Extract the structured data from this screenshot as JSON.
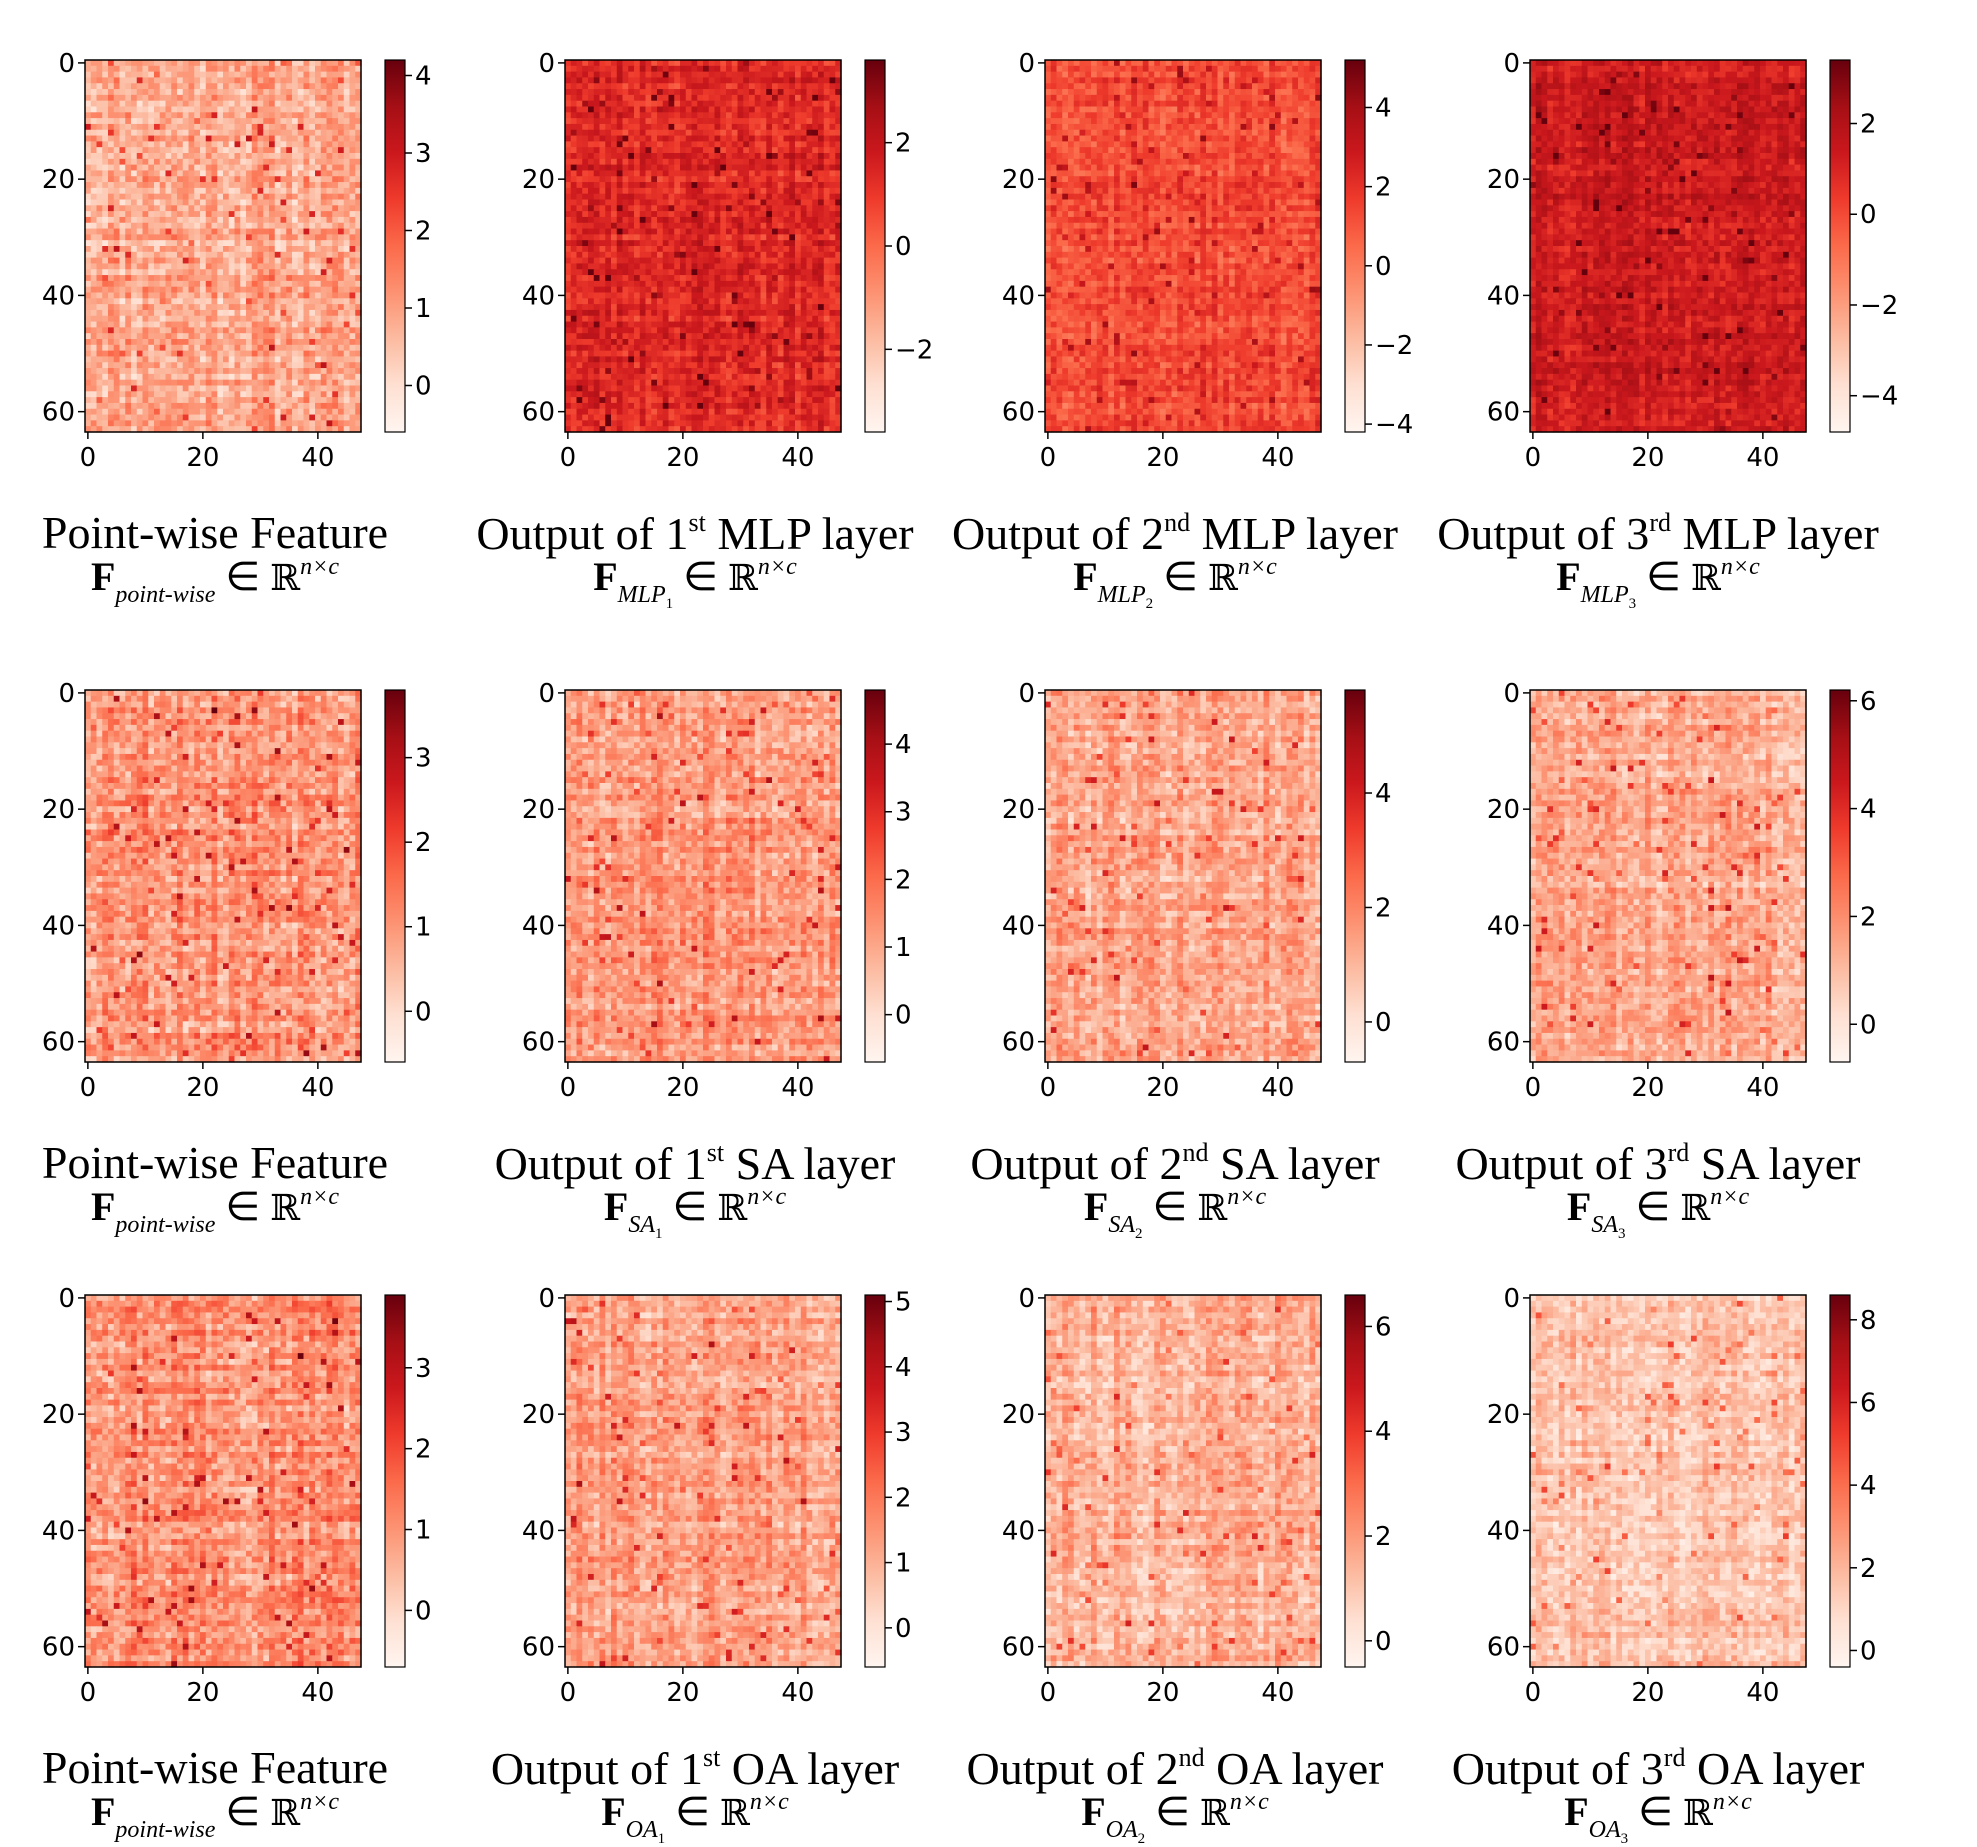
{
  "chart_data": [
    {
      "type": "heatmap",
      "row": 0,
      "col": 0,
      "title_text": "Point-wise Feature",
      "title_ordinal": "",
      "formula_symbol": "F",
      "formula_subscript": "point-wise",
      "formula_subscript_index": "",
      "formula_set": "ℝ",
      "formula_superscript": "n×c",
      "rows": 64,
      "cols": 48,
      "x_ticks": [
        0,
        20,
        40
      ],
      "y_ticks": [
        0,
        20,
        40,
        60
      ],
      "colorbar_range": [
        -0.6,
        4.2
      ],
      "colorbar_ticks": [
        0,
        1,
        2,
        3,
        4
      ],
      "colormap": "Reds",
      "mean": 0.9,
      "spread": 0.75,
      "seed": 11
    },
    {
      "type": "heatmap",
      "row": 0,
      "col": 1,
      "title_text": "Output of 1{sup} MLP layer",
      "title_ordinal": "st",
      "formula_symbol": "F",
      "formula_subscript": "MLP",
      "formula_subscript_index": "1",
      "formula_set": "ℝ",
      "formula_superscript": "n×c",
      "rows": 64,
      "cols": 48,
      "x_ticks": [
        0,
        20,
        40
      ],
      "y_ticks": [
        0,
        20,
        40,
        60
      ],
      "colorbar_range": [
        -3.6,
        3.6
      ],
      "colorbar_ticks": [
        -2,
        0,
        2
      ],
      "colormap": "Reds",
      "mean": 1.4,
      "spread": 0.8,
      "seed": 23
    },
    {
      "type": "heatmap",
      "row": 0,
      "col": 2,
      "title_text": "Output of 2{sup} MLP layer",
      "title_ordinal": "nd",
      "formula_symbol": "F",
      "formula_subscript": "MLP",
      "formula_subscript_index": "2",
      "formula_set": "ℝ",
      "formula_superscript": "n×c",
      "rows": 64,
      "cols": 48,
      "x_ticks": [
        0,
        20,
        40
      ],
      "y_ticks": [
        0,
        20,
        40,
        60
      ],
      "colorbar_range": [
        -4.2,
        5.2
      ],
      "colorbar_ticks": [
        -4,
        -2,
        0,
        2,
        4
      ],
      "colormap": "Reds",
      "mean": 1.3,
      "spread": 1.0,
      "seed": 37
    },
    {
      "type": "heatmap",
      "row": 0,
      "col": 3,
      "title_text": "Output of 3{sup} MLP layer",
      "title_ordinal": "rd",
      "formula_symbol": "F",
      "formula_subscript": "MLP",
      "formula_subscript_index": "3",
      "formula_set": "ℝ",
      "formula_superscript": "n×c",
      "rows": 64,
      "cols": 48,
      "x_ticks": [
        0,
        20,
        40
      ],
      "y_ticks": [
        0,
        20,
        40,
        60
      ],
      "colorbar_range": [
        -4.8,
        3.4
      ],
      "colorbar_ticks": [
        -4,
        -2,
        0,
        2
      ],
      "colormap": "Reds",
      "mean": 1.3,
      "spread": 0.8,
      "seed": 41
    },
    {
      "type": "heatmap",
      "row": 1,
      "col": 0,
      "title_text": "Point-wise Feature",
      "title_ordinal": "",
      "formula_symbol": "F",
      "formula_subscript": "point-wise",
      "formula_subscript_index": "",
      "formula_set": "ℝ",
      "formula_superscript": "n×c",
      "rows": 64,
      "cols": 48,
      "x_ticks": [
        0,
        20,
        40
      ],
      "y_ticks": [
        0,
        20,
        40,
        60
      ],
      "colorbar_range": [
        -0.6,
        3.8
      ],
      "colorbar_ticks": [
        0,
        1,
        2,
        3
      ],
      "colormap": "Reds",
      "mean": 1.1,
      "spread": 0.8,
      "seed": 53
    },
    {
      "type": "heatmap",
      "row": 1,
      "col": 1,
      "title_text": "Output of 1{sup} SA layer",
      "title_ordinal": "st",
      "formula_symbol": "F",
      "formula_subscript": "SA",
      "formula_subscript_index": "1",
      "formula_set": "ℝ",
      "formula_superscript": "n×c",
      "rows": 64,
      "cols": 48,
      "x_ticks": [
        0,
        20,
        40
      ],
      "y_ticks": [
        0,
        20,
        40,
        60
      ],
      "colorbar_range": [
        -0.7,
        4.8
      ],
      "colorbar_ticks": [
        0,
        1,
        2,
        3,
        4
      ],
      "colormap": "Reds",
      "mean": 1.3,
      "spread": 0.85,
      "seed": 67
    },
    {
      "type": "heatmap",
      "row": 1,
      "col": 2,
      "title_text": "Output of 2{sup} SA layer",
      "title_ordinal": "nd",
      "formula_symbol": "F",
      "formula_subscript": "SA",
      "formula_subscript_index": "2",
      "formula_set": "ℝ",
      "formula_superscript": "n×c",
      "rows": 64,
      "cols": 48,
      "x_ticks": [
        0,
        20,
        40
      ],
      "y_ticks": [
        0,
        20,
        40,
        60
      ],
      "colorbar_range": [
        -0.7,
        5.8
      ],
      "colorbar_ticks": [
        0,
        2,
        4
      ],
      "colormap": "Reds",
      "mean": 1.4,
      "spread": 0.95,
      "seed": 79
    },
    {
      "type": "heatmap",
      "row": 1,
      "col": 3,
      "title_text": "Output of 3{sup}  SA layer",
      "title_ordinal": "rd",
      "formula_symbol": "F",
      "formula_subscript": "SA",
      "formula_subscript_index": "3",
      "formula_set": "ℝ",
      "formula_superscript": "n×c",
      "rows": 64,
      "cols": 48,
      "x_ticks": [
        0,
        20,
        40
      ],
      "y_ticks": [
        0,
        20,
        40,
        60
      ],
      "colorbar_range": [
        -0.7,
        6.2
      ],
      "colorbar_ticks": [
        0,
        2,
        4,
        6
      ],
      "colormap": "Reds",
      "mean": 1.4,
      "spread": 1.0,
      "seed": 83
    },
    {
      "type": "heatmap",
      "row": 2,
      "col": 0,
      "title_text": "Point-wise Feature",
      "title_ordinal": "",
      "formula_symbol": "F",
      "formula_subscript": "point-wise",
      "formula_subscript_index": "",
      "formula_set": "ℝ",
      "formula_superscript": "n×c",
      "rows": 64,
      "cols": 48,
      "x_ticks": [
        0,
        20,
        40
      ],
      "y_ticks": [
        0,
        20,
        40,
        60
      ],
      "colorbar_range": [
        -0.7,
        3.9
      ],
      "colorbar_ticks": [
        0,
        1,
        2,
        3
      ],
      "colormap": "Reds",
      "mean": 1.1,
      "spread": 0.8,
      "seed": 97
    },
    {
      "type": "heatmap",
      "row": 2,
      "col": 1,
      "title_text": "Output of 1{sup} OA layer",
      "title_ordinal": "st",
      "formula_symbol": "F",
      "formula_subscript": "OA",
      "formula_subscript_index": "1",
      "formula_set": "ℝ",
      "formula_superscript": "n×c",
      "rows": 64,
      "cols": 48,
      "x_ticks": [
        0,
        20,
        40
      ],
      "y_ticks": [
        0,
        20,
        40,
        60
      ],
      "colorbar_range": [
        -0.6,
        5.1
      ],
      "colorbar_ticks": [
        0,
        1,
        2,
        3,
        4,
        5
      ],
      "colormap": "Reds",
      "mean": 1.3,
      "spread": 0.85,
      "seed": 101
    },
    {
      "type": "heatmap",
      "row": 2,
      "col": 2,
      "title_text": "Output of 2{sup} OA layer",
      "title_ordinal": "nd",
      "formula_symbol": "F",
      "formula_subscript": "OA",
      "formula_subscript_index": "2",
      "formula_set": "ℝ",
      "formula_superscript": "n×c",
      "rows": 64,
      "cols": 48,
      "x_ticks": [
        0,
        20,
        40
      ],
      "y_ticks": [
        0,
        20,
        40,
        60
      ],
      "colorbar_range": [
        -0.5,
        6.6
      ],
      "colorbar_ticks": [
        0,
        2,
        4,
        6
      ],
      "colormap": "Reds",
      "mean": 1.5,
      "spread": 1.0,
      "seed": 113
    },
    {
      "type": "heatmap",
      "row": 2,
      "col": 3,
      "title_text": "Output of 3{sup}  OA layer",
      "title_ordinal": "rd",
      "formula_symbol": "F",
      "formula_subscript": "OA",
      "formula_subscript_index": "3",
      "formula_set": "ℝ",
      "formula_superscript": "n×c",
      "rows": 64,
      "cols": 48,
      "x_ticks": [
        0,
        20,
        40
      ],
      "y_ticks": [
        0,
        20,
        40,
        60
      ],
      "colorbar_range": [
        -0.4,
        8.6
      ],
      "colorbar_ticks": [
        0,
        2,
        4,
        6,
        8
      ],
      "colormap": "Reds",
      "mean": 1.6,
      "spread": 1.15,
      "seed": 127
    }
  ]
}
